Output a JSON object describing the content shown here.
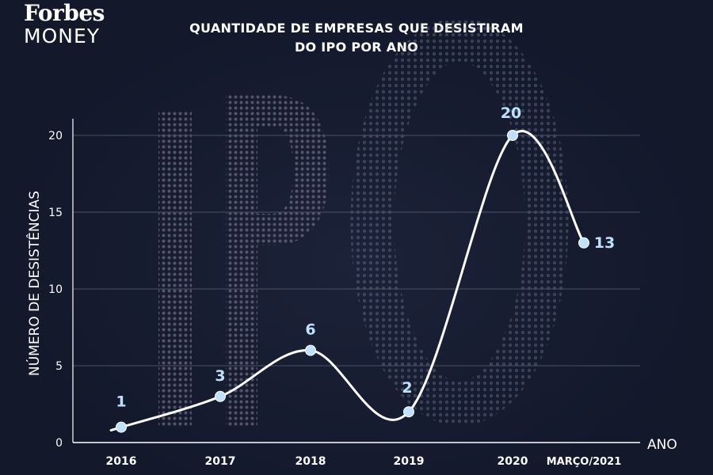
{
  "brand": {
    "name": "Forbes",
    "section": "MONEY"
  },
  "title_line1": "QUANTIDADE DE EMPRESAS QUE DESISTIRAM",
  "title_line2": "DO IPO POR ANO",
  "chart_data": {
    "type": "line",
    "title": "QUANTIDADE DE EMPRESAS QUE DESISTIRAM DO IPO POR ANO",
    "xlabel": "ANO",
    "ylabel": "NÚMERO DE DESISTÊNCIAS",
    "categories": [
      "2016",
      "2017",
      "2018",
      "2019",
      "2020",
      "MARÇO/2021"
    ],
    "values": [
      1,
      3,
      6,
      2,
      20,
      13
    ],
    "data_labels": [
      "1",
      "3",
      "6",
      "2",
      "20",
      "13"
    ],
    "ylim": [
      0,
      20
    ],
    "yticks": [
      "0",
      "5",
      "10",
      "15",
      "20"
    ],
    "grid": true,
    "smooth": true,
    "background_text": "IPO",
    "colors": {
      "line": "#ffffff",
      "point": "#bfe1fb",
      "label": "#bfe1fb",
      "grid": "#4a5066",
      "background": "#13182b"
    }
  }
}
